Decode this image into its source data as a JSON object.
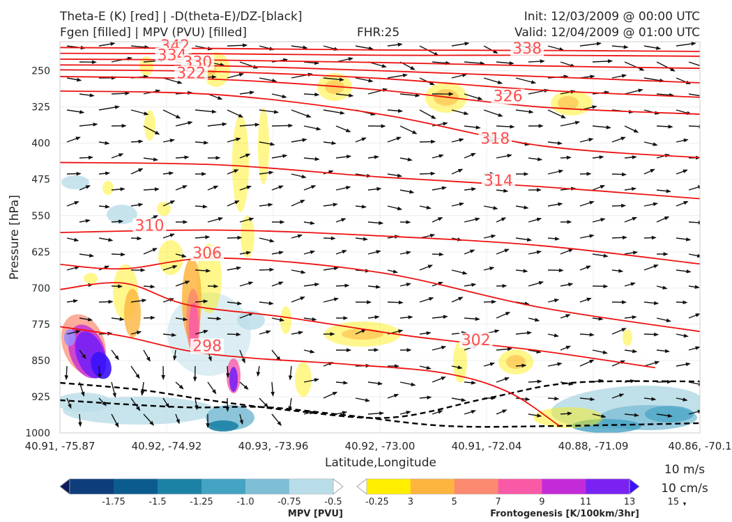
{
  "header": {
    "line1_left": "Theta-E (K) [red] | -D(theta-E)/DZ-[black]",
    "line2_left": "Fgen [filled] | MPV (PVU) [filled]",
    "fhr": "FHR:25",
    "init": "Init: 12/03/2009 @ 00:00 UTC",
    "valid": "Valid: 12/04/2009 @ 01:00 UTC"
  },
  "chart_data": {
    "type": "cross-section",
    "xlabel": "Latitude,Longitude",
    "ylabel": "Pressure [hPa]",
    "x_ticks": [
      "40.91, -75.87",
      "40.92, -74.92",
      "40.93, -73.96",
      "40.92, -73.00",
      "40.91, -72.04",
      "40.88, -71.09",
      "40.86, -70.1"
    ],
    "y_ticks": [
      250,
      325,
      400,
      475,
      550,
      625,
      700,
      775,
      850,
      925,
      1000
    ],
    "ylim": [
      190,
      1000
    ],
    "y_inverted": true,
    "grid": true,
    "theta_e_labels": [
      {
        "value": 342,
        "x": 0.18,
        "p": 207
      },
      {
        "value": 338,
        "x": 0.73,
        "p": 213
      },
      {
        "value": 334,
        "x": 0.175,
        "p": 227
      },
      {
        "value": 330,
        "x": 0.215,
        "p": 241
      },
      {
        "value": 322,
        "x": 0.205,
        "p": 264
      },
      {
        "value": 326,
        "x": 0.7,
        "p": 312
      },
      {
        "value": 318,
        "x": 0.68,
        "p": 400
      },
      {
        "value": 314,
        "x": 0.685,
        "p": 487
      },
      {
        "value": 310,
        "x": 0.14,
        "p": 580
      },
      {
        "value": 306,
        "x": 0.23,
        "p": 637
      },
      {
        "value": 302,
        "x": 0.65,
        "p": 817
      },
      {
        "value": 298,
        "x": 0.23,
        "p": 829
      }
    ],
    "theta_e_contours": [
      {
        "value": 342,
        "points": [
          [
            0,
            202
          ],
          [
            0.25,
            204
          ],
          [
            0.5,
            207
          ],
          [
            0.75,
            208
          ],
          [
            1,
            210
          ]
        ]
      },
      {
        "value": 338,
        "points": [
          [
            0,
            214
          ],
          [
            0.25,
            215
          ],
          [
            0.5,
            218
          ],
          [
            0.75,
            218
          ],
          [
            1,
            220
          ]
        ]
      },
      {
        "value": 334,
        "points": [
          [
            0,
            226
          ],
          [
            0.25,
            228
          ],
          [
            0.5,
            233
          ],
          [
            0.75,
            240
          ],
          [
            1,
            245
          ]
        ]
      },
      {
        "value": 330,
        "points": [
          [
            0,
            238
          ],
          [
            0.25,
            240
          ],
          [
            0.5,
            250
          ],
          [
            0.75,
            262
          ],
          [
            1,
            275
          ]
        ]
      },
      {
        "value": 326,
        "points": [
          [
            0,
            248
          ],
          [
            0.25,
            252
          ],
          [
            0.5,
            266
          ],
          [
            0.75,
            290
          ],
          [
            1,
            305
          ]
        ]
      },
      {
        "value": 322,
        "points": [
          [
            0,
            262
          ],
          [
            0.25,
            268
          ],
          [
            0.5,
            290
          ],
          [
            0.75,
            325
          ],
          [
            1,
            340
          ]
        ]
      },
      {
        "value": 318,
        "points": [
          [
            0,
            292
          ],
          [
            0.25,
            300
          ],
          [
            0.5,
            340
          ],
          [
            0.75,
            405
          ],
          [
            1,
            430
          ]
        ]
      },
      {
        "value": 314,
        "points": [
          [
            0,
            440
          ],
          [
            0.25,
            445
          ],
          [
            0.5,
            470
          ],
          [
            0.75,
            490
          ],
          [
            1,
            515
          ]
        ]
      },
      {
        "value": 310,
        "points": [
          [
            0,
            585
          ],
          [
            0.25,
            580
          ],
          [
            0.5,
            592
          ],
          [
            0.75,
            612
          ],
          [
            1,
            650
          ]
        ]
      },
      {
        "value": 306,
        "points": [
          [
            0,
            651
          ],
          [
            0.1,
            660
          ],
          [
            0.25,
            638
          ],
          [
            0.5,
            668
          ],
          [
            0.75,
            740
          ],
          [
            1,
            790
          ]
        ]
      },
      {
        "value": 302,
        "points": [
          [
            0,
            703
          ],
          [
            0.1,
            690
          ],
          [
            0.2,
            735
          ],
          [
            0.35,
            760
          ],
          [
            0.55,
            800
          ],
          [
            0.75,
            830
          ],
          [
            0.93,
            865
          ]
        ]
      },
      {
        "value": 298,
        "points": [
          [
            0,
            780
          ],
          [
            0.1,
            800
          ],
          [
            0.2,
            830
          ],
          [
            0.3,
            845
          ],
          [
            0.45,
            858
          ],
          [
            0.6,
            876
          ],
          [
            0.7,
            915
          ],
          [
            0.78,
            985
          ]
        ]
      }
    ],
    "mpv_colorbar": {
      "label": "MPV [PVU]",
      "ticks": [
        "-1.75",
        "-1.5",
        "-1.25",
        "-1.0",
        "-0.75",
        "-0.5",
        "-0.25"
      ],
      "colors": [
        "#0b1b5e",
        "#0e3d7a",
        "#0c5b8f",
        "#1b82a6",
        "#45a3c4",
        "#7fbfd6",
        "#b9dde8",
        "#ffffff"
      ]
    },
    "fgen_colorbar": {
      "label": "Frontogenesis [K/100km/3hr]",
      "ticks": [
        "3",
        "5",
        "7",
        "9",
        "11",
        "13",
        "15"
      ],
      "colors": [
        "#ffffff",
        "#ffee00",
        "#fdb540",
        "#fb8a70",
        "#f95aa6",
        "#c42bd8",
        "#7a22f2",
        "#3b12fb"
      ]
    },
    "wind_key": {
      "horizontal": "10 m/s",
      "vertical": "10 cm/s"
    }
  }
}
